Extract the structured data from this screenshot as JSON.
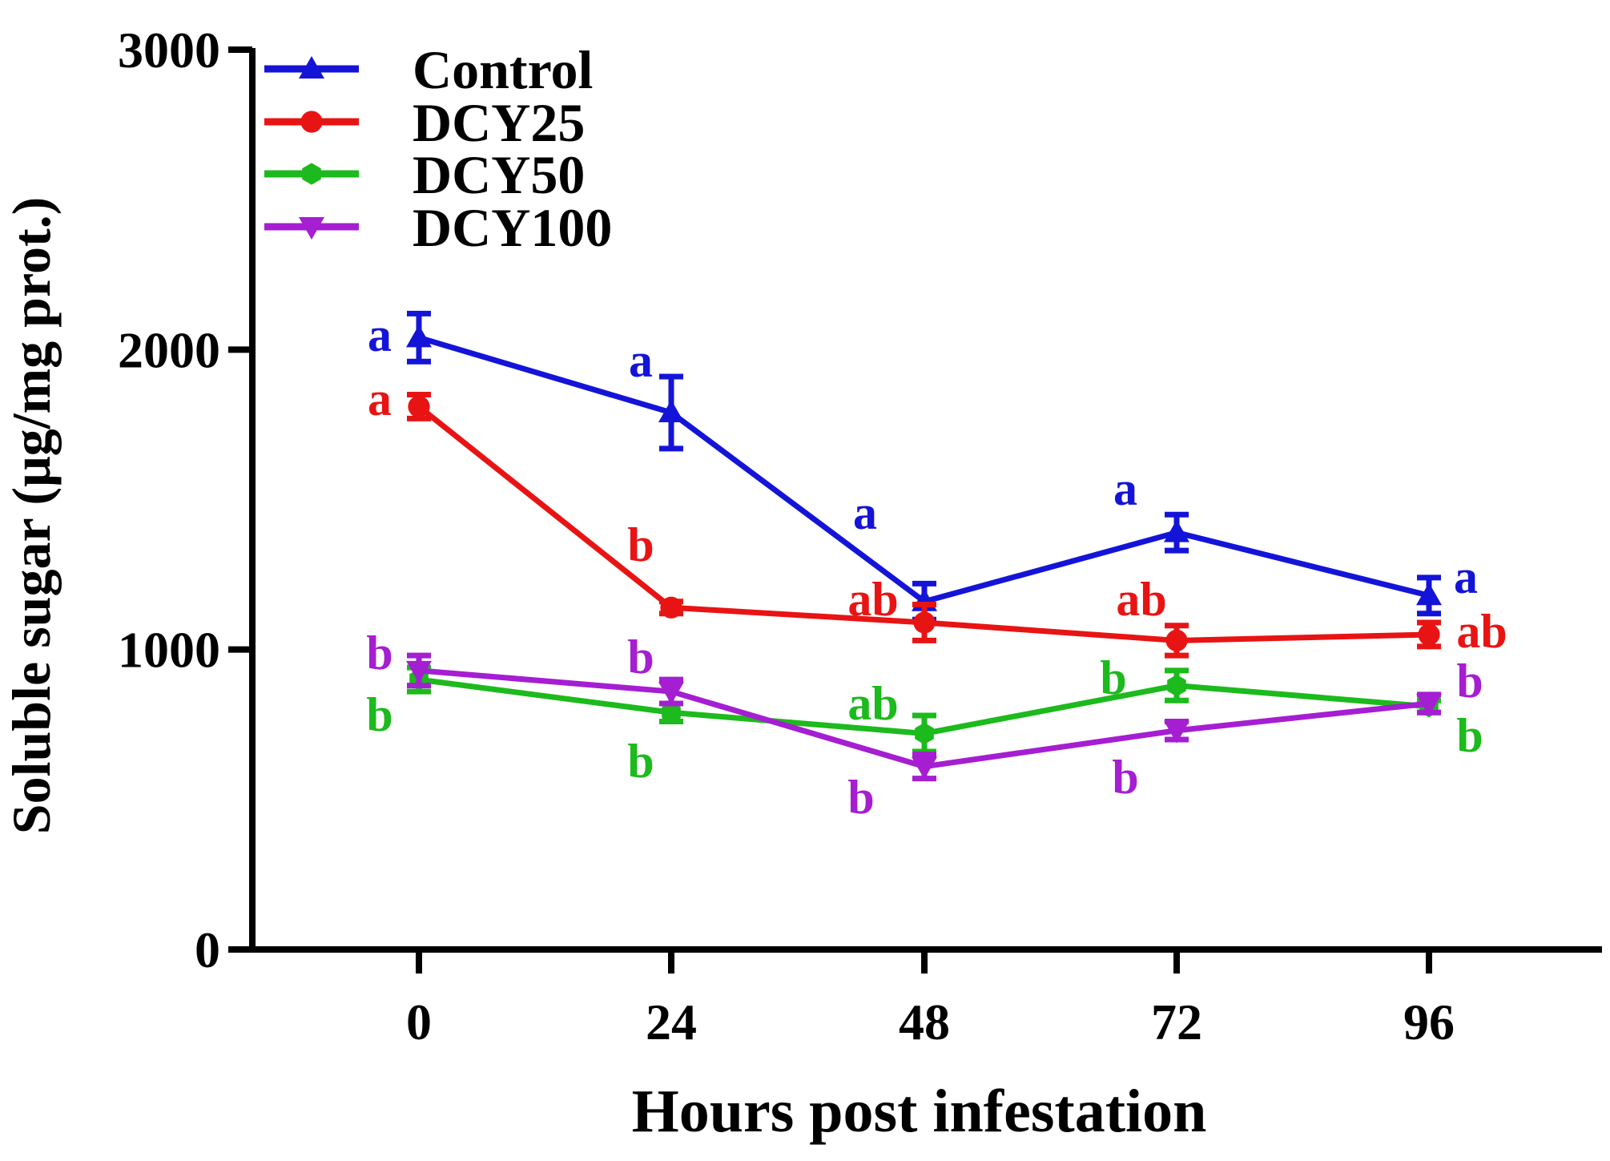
{
  "chart_data": {
    "type": "line",
    "title": "",
    "xlabel": "Hours post infestation",
    "ylabel": "Soluble sugar (μg/mg prot.)",
    "x": [
      0,
      24,
      48,
      72,
      96
    ],
    "x_tick_labels": [
      "0",
      "24",
      "48",
      "72",
      "96"
    ],
    "ylim": [
      0,
      3000
    ],
    "y_ticks": [
      0,
      1000,
      2000,
      3000
    ],
    "y_tick_labels": [
      "0",
      "1000",
      "2000",
      "3000"
    ],
    "grid": false,
    "legend_position": "top-left",
    "series": [
      {
        "name": "Control",
        "color": "#1414d8",
        "marker": "triangle-up",
        "values": [
          2040,
          1790,
          1160,
          1390,
          1180
        ],
        "errors": [
          80,
          120,
          60,
          60,
          60
        ],
        "letters": [
          "a",
          "a",
          "a",
          "a",
          "a"
        ]
      },
      {
        "name": "DCY25",
        "color": "#e81414",
        "marker": "circle",
        "values": [
          1810,
          1140,
          1090,
          1030,
          1050
        ],
        "errors": [
          40,
          20,
          60,
          50,
          40
        ],
        "letters": [
          "a",
          "b",
          "ab",
          "ab",
          "ab"
        ]
      },
      {
        "name": "DCY50",
        "color": "#1cba1c",
        "marker": "hexagon",
        "values": [
          900,
          790,
          720,
          880,
          810
        ],
        "errors": [
          40,
          30,
          60,
          50,
          20
        ],
        "letters": [
          "b",
          "b",
          "ab",
          "b",
          "b"
        ]
      },
      {
        "name": "DCY100",
        "color": "#a51ed1",
        "marker": "triangle-down",
        "values": [
          930,
          860,
          610,
          730,
          820
        ],
        "errors": [
          50,
          40,
          40,
          30,
          30
        ],
        "letters": [
          "b",
          "b",
          "b",
          "b",
          "b"
        ]
      }
    ]
  }
}
